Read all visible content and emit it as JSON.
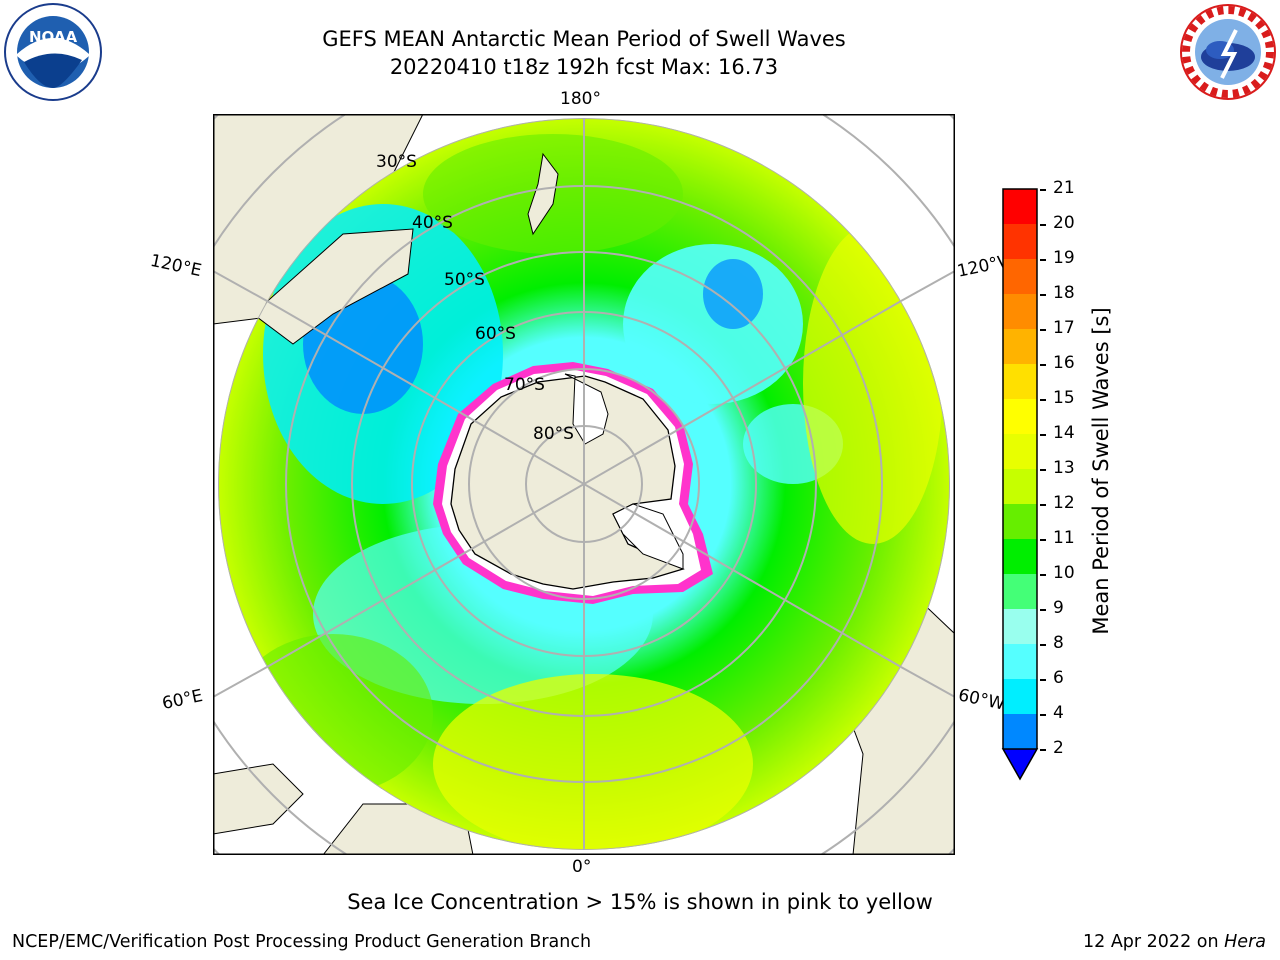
{
  "header": {
    "title_line1": "GEFS MEAN Antarctic Mean Period of Swell Waves",
    "title_line2": "20220410 t18z 192h fcst   Max: 16.73"
  },
  "logos": {
    "left": {
      "text": "NOAA",
      "ring_text": "NATIONAL OCEANIC AND ATMOSPHERIC ADMINISTRATION · U.S. DEPARTMENT OF COMMERCE"
    },
    "right": {
      "ring_text": "NATIONAL WEATHER SERVICE"
    }
  },
  "map": {
    "projection": "south-polar-stereographic",
    "longitude_labels": {
      "top": "180°",
      "bottom": "0°",
      "upper_left": "120°E",
      "upper_right": "120°W",
      "lower_left": "60°E",
      "lower_right": "60°W"
    },
    "latitude_labels": [
      "30°S",
      "40°S",
      "50°S",
      "60°S",
      "70°S",
      "80°S"
    ],
    "colors": {
      "land": "#eeecda",
      "grid": "#b0b0b0",
      "ice_edge": "#ff33cc",
      "ice_interior": "#ffffff"
    }
  },
  "colorbar": {
    "label": "Mean Period of Swell Waves [s]",
    "ticks": [
      "21",
      "20",
      "19",
      "18",
      "17",
      "16",
      "15",
      "14",
      "13",
      "12",
      "11",
      "10",
      "9",
      "8",
      "6",
      "4",
      "2"
    ],
    "bins": [
      {
        "from": 20,
        "to": 21,
        "color": "#ff0000"
      },
      {
        "from": 19,
        "to": 20,
        "color": "#ff3300"
      },
      {
        "from": 18,
        "to": 19,
        "color": "#ff6600"
      },
      {
        "from": 17,
        "to": 18,
        "color": "#ff8c00"
      },
      {
        "from": 16,
        "to": 17,
        "color": "#ffb300"
      },
      {
        "from": 15,
        "to": 16,
        "color": "#ffe000"
      },
      {
        "from": 14,
        "to": 15,
        "color": "#ffff00"
      },
      {
        "from": 13,
        "to": 14,
        "color": "#e8ff00"
      },
      {
        "from": 12,
        "to": 13,
        "color": "#c6ff00"
      },
      {
        "from": 11,
        "to": 12,
        "color": "#66ee00"
      },
      {
        "from": 10,
        "to": 11,
        "color": "#00ee00"
      },
      {
        "from": 9,
        "to": 10,
        "color": "#44ff77"
      },
      {
        "from": 8,
        "to": 9,
        "color": "#99ffee"
      },
      {
        "from": 6,
        "to": 8,
        "color": "#55ffff"
      },
      {
        "from": 4,
        "to": 6,
        "color": "#00eeff"
      },
      {
        "from": 2,
        "to": 4,
        "color": "#0088ff"
      },
      {
        "from": 0,
        "to": 2,
        "color": "#0000ff"
      }
    ],
    "extend": "min"
  },
  "note": "Sea Ice Concentration > 15% is shown in pink to yellow",
  "footer": {
    "left": "NCEP/EMC/Verification Post Processing Product Generation Branch",
    "right_date": "12 Apr 2022 on ",
    "right_machine": "Hera"
  }
}
